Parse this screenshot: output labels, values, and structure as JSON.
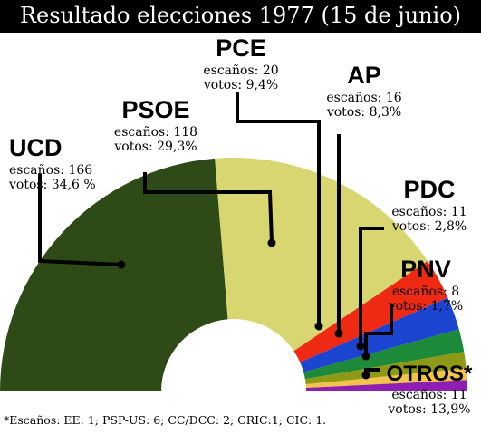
{
  "title": "Resultado elecciones 1977 (15 de junio)",
  "footnote": "*Escaños: EE: 1; PSP-US: 6; CC/DCC: 2; CRIC:1; CIC: 1.",
  "chart_data": {
    "type": "pie",
    "subtype": "parliament-semicircle",
    "total_seats": 350,
    "slices": [
      {
        "party": "UCD",
        "seats_label": "escaños: 166",
        "votes_label": "votos: 34,6 %",
        "seats": 166,
        "votes_pct": 34.6,
        "color": "#2e4a16"
      },
      {
        "party": "PSOE",
        "seats_label": "escaños: 118",
        "votes_label": "votos: 29,3%",
        "seats": 118,
        "votes_pct": 29.3,
        "color": "#d8d670"
      },
      {
        "party": "PCE",
        "seats_label": "escaños: 20",
        "votes_label": "votos: 9,4%",
        "seats": 20,
        "votes_pct": 9.4,
        "color": "#ee2a15"
      },
      {
        "party": "AP",
        "seats_label": "escaños: 16",
        "votes_label": "votos: 8,3%",
        "seats": 16,
        "votes_pct": 8.3,
        "color": "#1b45d0"
      },
      {
        "party": "PDC",
        "seats_label": "escaños: 11",
        "votes_label": "votos: 2,8%",
        "seats": 11,
        "votes_pct": 2.8,
        "color": "#1d8a3a"
      },
      {
        "party": "PNV",
        "seats_label": "escaños: 8",
        "votes_label": "votos: 1,7%",
        "seats": 8,
        "votes_pct": 1.7,
        "color": "#8e9a16"
      },
      {
        "party": "OTROS*",
        "seats_label": "escaños: 11",
        "votes_label": "votos: 13,9%",
        "seats": 11,
        "votes_pct": 13.9,
        "color": "#8f1fb2",
        "extra_colors": [
          "#f2c24a"
        ]
      }
    ]
  }
}
